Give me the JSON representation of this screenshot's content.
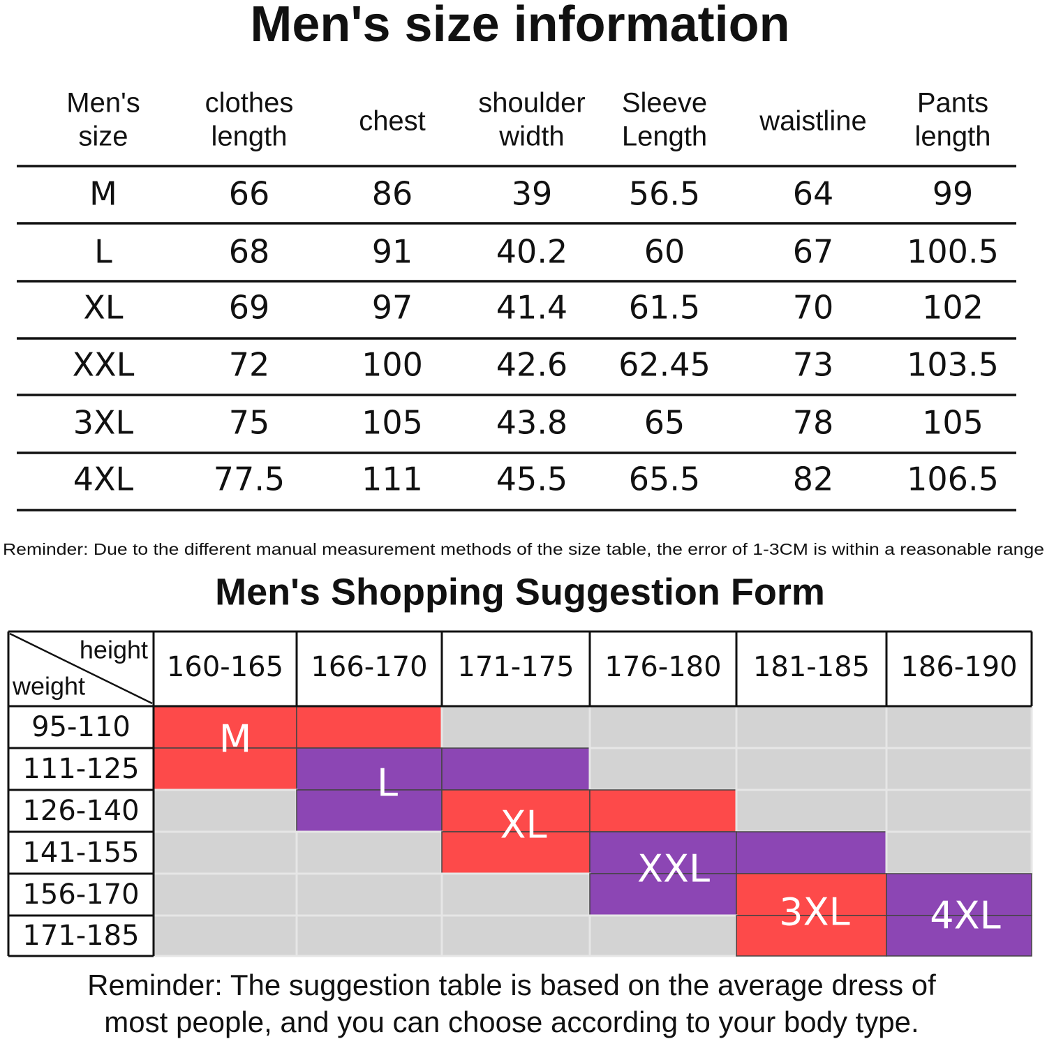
{
  "size_table": {
    "title": "Men's size information",
    "headers": [
      [
        "Men's",
        "size"
      ],
      [
        "clothes",
        "length"
      ],
      [
        "chest"
      ],
      [
        "shoulder",
        "width"
      ],
      [
        "Sleeve",
        "Length"
      ],
      [
        "waistline"
      ],
      [
        "Pants",
        "length"
      ]
    ],
    "rows": [
      [
        "M",
        "66",
        "86",
        "39",
        "56.5",
        "64",
        "99"
      ],
      [
        "L",
        "68",
        "91",
        "40.2",
        "60",
        "67",
        "100.5"
      ],
      [
        "XL",
        "69",
        "97",
        "41.4",
        "61.5",
        "70",
        "102"
      ],
      [
        "XXL",
        "72",
        "100",
        "42.6",
        "62.45",
        "73",
        "103.5"
      ],
      [
        "3XL",
        "75",
        "105",
        "43.8",
        "65",
        "78",
        "105"
      ],
      [
        "4XL",
        "77.5",
        "111",
        "45.5",
        "65.5",
        "82",
        "106.5"
      ]
    ],
    "reminder": "Reminder: Due to the different manual measurement methods of the size table, the error of 1-3CM is within a reasonable range"
  },
  "suggestion_form": {
    "title": "Men's Shopping Suggestion Form",
    "corner_height": "height",
    "corner_weight": "weight",
    "height_ranges": [
      "160-165",
      "166-170",
      "171-175",
      "176-180",
      "181-185",
      "186-190"
    ],
    "weight_ranges": [
      "95-110",
      "111-125",
      "126-140",
      "141-155",
      "156-170",
      "171-185"
    ],
    "size_labels": [
      "M",
      "L",
      "XL",
      "XXL",
      "3XL",
      "4XL"
    ],
    "reminder": [
      "Reminder: The suggestion table is based on the average dress of",
      "most people, and you can choose according to your body type."
    ]
  }
}
